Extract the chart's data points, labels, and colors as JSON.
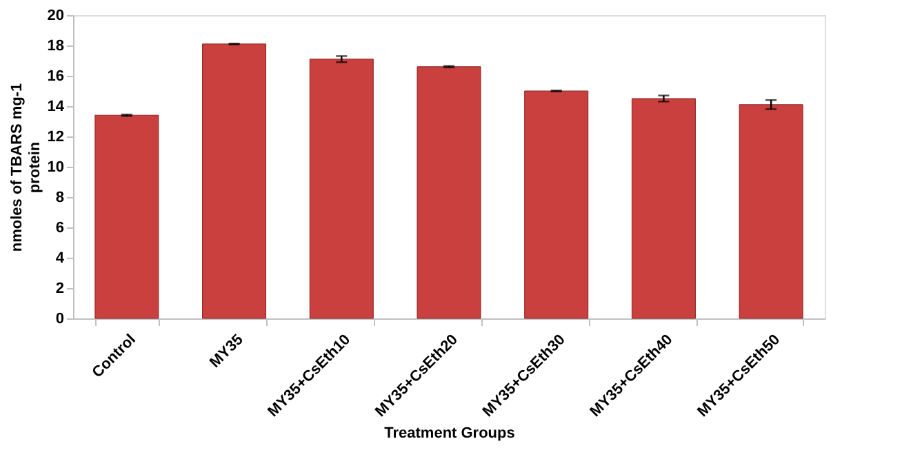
{
  "chart_data": {
    "type": "bar",
    "xlabel": "Treatment Groups",
    "ylabel": "nmoles of TBARS mg-1 protein",
    "categories": [
      "Control",
      "MY35",
      "MY35+CsEth10",
      "MY35+CsEth20",
      "MY35+CsEth30",
      "MY35+CsEth40",
      "MY35+CsEth50"
    ],
    "values": [
      13.4,
      18.1,
      17.1,
      16.6,
      15.0,
      14.5,
      14.1
    ],
    "errors": [
      0.05,
      0.03,
      0.2,
      0.05,
      0.03,
      0.2,
      0.3
    ],
    "color": "#c9403e",
    "ylim": [
      0,
      20
    ],
    "yticks": [
      0,
      2,
      4,
      6,
      8,
      10,
      12,
      14,
      16,
      18,
      20
    ],
    "grid": false
  }
}
